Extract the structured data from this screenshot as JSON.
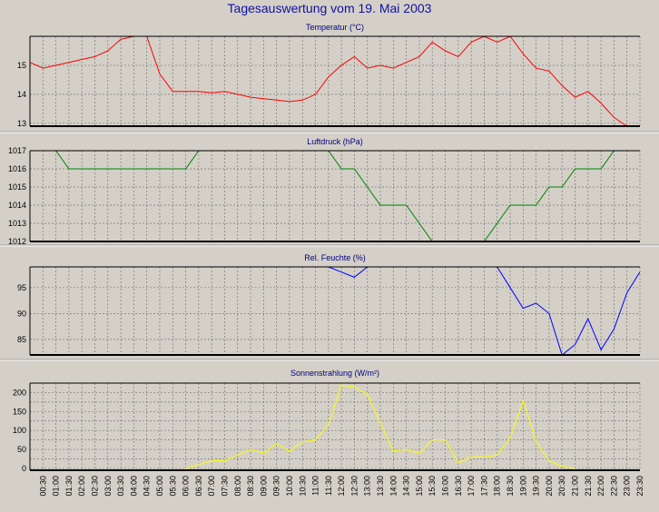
{
  "title": "Tagesauswertung vom 19. Mai 2003",
  "chart_data": [
    {
      "type": "line",
      "title": "Temperatur (°C)",
      "color": "#ff0000",
      "ylim": [
        12.9,
        16.0
      ],
      "yticks": [
        13,
        14,
        15
      ],
      "grid": true,
      "x": [
        "00:00",
        "00:30",
        "01:00",
        "01:30",
        "02:00",
        "02:30",
        "03:00",
        "03:30",
        "04:00",
        "04:30",
        "05:00",
        "05:30",
        "06:00",
        "06:30",
        "07:00",
        "07:30",
        "08:00",
        "08:30",
        "09:00",
        "09:30",
        "10:00",
        "10:30",
        "11:00",
        "11:30",
        "12:00",
        "12:30",
        "13:00",
        "13:30",
        "14:00",
        "14:30",
        "15:00",
        "15:30",
        "16:00",
        "16:30",
        "17:00",
        "17:30",
        "18:00",
        "18:30",
        "19:00",
        "19:30",
        "20:00",
        "20:30",
        "21:00",
        "21:30",
        "22:00",
        "22:30",
        "23:00",
        "23:30"
      ],
      "values": [
        15.1,
        14.9,
        15.0,
        15.1,
        15.2,
        15.3,
        15.5,
        15.9,
        16.0,
        16.0,
        14.7,
        14.1,
        14.1,
        14.1,
        14.05,
        14.1,
        14.0,
        13.9,
        13.85,
        13.8,
        13.75,
        13.8,
        14.0,
        14.6,
        15.0,
        15.3,
        14.9,
        15.0,
        14.9,
        15.1,
        15.3,
        15.8,
        15.5,
        15.3,
        15.8,
        16.0,
        15.8,
        16.0,
        15.4,
        14.9,
        14.8,
        14.3,
        13.9,
        14.1,
        13.7,
        13.2,
        12.9,
        12.9
      ]
    },
    {
      "type": "line",
      "title": "Luftdruck (hPa)",
      "color": "#008000",
      "ylim": [
        1012,
        1017
      ],
      "yticks": [
        1012,
        1013,
        1014,
        1015,
        1016,
        1017
      ],
      "grid": true,
      "x": [
        "00:00",
        "00:30",
        "01:00",
        "01:30",
        "02:00",
        "02:30",
        "03:00",
        "03:30",
        "04:00",
        "04:30",
        "05:00",
        "05:30",
        "06:00",
        "06:30",
        "07:00",
        "07:30",
        "08:00",
        "08:30",
        "09:00",
        "09:30",
        "10:00",
        "10:30",
        "11:00",
        "11:30",
        "12:00",
        "12:30",
        "13:00",
        "13:30",
        "14:00",
        "14:30",
        "15:00",
        "15:30",
        "16:00",
        "16:30",
        "17:00",
        "17:30",
        "18:00",
        "18:30",
        "19:00",
        "19:30",
        "20:00",
        "20:30",
        "21:00",
        "21:30",
        "22:00",
        "22:30",
        "23:00",
        "23:30"
      ],
      "values": [
        1017.8,
        1017.5,
        1017.0,
        1016,
        1016,
        1016,
        1016,
        1016,
        1016,
        1016,
        1016,
        1016,
        1016,
        1017,
        1017.5,
        1017.5,
        1017.5,
        1017.5,
        1017.5,
        1017.5,
        1017.5,
        1017.5,
        1017.5,
        1017,
        1016,
        1016,
        1015,
        1014,
        1014,
        1014,
        1013,
        1012,
        1011.5,
        1011.5,
        1011.5,
        1012,
        1013,
        1014,
        1014,
        1014,
        1015,
        1015,
        1016,
        1016,
        1016,
        1017,
        1017.5,
        1017.8
      ]
    },
    {
      "type": "line",
      "title": "Rel. Feuchte (%)",
      "color": "#0000ff",
      "ylim": [
        82,
        99
      ],
      "yticks": [
        85,
        90,
        95
      ],
      "grid": true,
      "x": [
        "00:00",
        "00:30",
        "01:00",
        "01:30",
        "02:00",
        "02:30",
        "03:00",
        "03:30",
        "04:00",
        "04:30",
        "05:00",
        "05:30",
        "06:00",
        "06:30",
        "07:00",
        "07:30",
        "08:00",
        "08:30",
        "09:00",
        "09:30",
        "10:00",
        "10:30",
        "11:00",
        "11:30",
        "12:00",
        "12:30",
        "13:00",
        "13:30",
        "14:00",
        "14:30",
        "15:00",
        "15:30",
        "16:00",
        "16:30",
        "17:00",
        "17:30",
        "18:00",
        "18:30",
        "19:00",
        "19:30",
        "20:00",
        "20:30",
        "21:00",
        "21:30",
        "22:00",
        "22:30",
        "23:00",
        "23:30"
      ],
      "values": [
        100,
        100,
        100,
        100,
        100,
        100,
        100,
        100,
        100,
        100,
        100,
        100,
        100,
        100,
        100,
        100,
        100,
        100,
        100,
        100,
        100,
        100,
        100,
        99,
        98,
        97,
        99,
        100,
        100,
        100,
        100,
        100,
        100,
        100,
        100,
        100,
        99,
        95,
        91,
        92,
        90,
        82,
        84,
        89,
        83,
        87,
        94,
        98
      ]
    },
    {
      "type": "line",
      "title": "Sonnenstrahlung (W/m²)",
      "color": "#ffff00",
      "ylim": [
        -5,
        225
      ],
      "yticks": [
        0,
        25,
        50,
        75,
        100,
        125,
        150,
        175,
        200
      ],
      "ytick_labels_shown": [
        0,
        50,
        100,
        150,
        200
      ],
      "grid": true,
      "x": [
        "00:00",
        "00:30",
        "01:00",
        "01:30",
        "02:00",
        "02:30",
        "03:00",
        "03:30",
        "04:00",
        "04:30",
        "05:00",
        "05:30",
        "06:00",
        "06:30",
        "07:00",
        "07:30",
        "08:00",
        "08:30",
        "09:00",
        "09:30",
        "10:00",
        "10:30",
        "11:00",
        "11:30",
        "12:00",
        "12:30",
        "13:00",
        "13:30",
        "14:00",
        "14:30",
        "15:00",
        "15:30",
        "16:00",
        "16:30",
        "17:00",
        "17:30",
        "18:00",
        "18:30",
        "19:00",
        "19:30",
        "20:00",
        "20:30",
        "21:00",
        "21:30",
        "22:00",
        "22:30",
        "23:00",
        "23:30"
      ],
      "values": [
        null,
        null,
        null,
        null,
        null,
        null,
        null,
        null,
        null,
        null,
        null,
        null,
        0,
        10,
        20,
        20,
        35,
        50,
        40,
        65,
        45,
        70,
        75,
        115,
        220,
        215,
        195,
        120,
        45,
        50,
        40,
        75,
        75,
        15,
        30,
        30,
        35,
        80,
        180,
        70,
        20,
        5,
        0,
        null,
        null,
        null,
        null,
        null
      ]
    }
  ],
  "x_axis_labels": [
    "00:30",
    "01:00",
    "01:30",
    "02:00",
    "02:30",
    "03:00",
    "03:30",
    "04:00",
    "04:30",
    "05:00",
    "05:30",
    "06:00",
    "06:30",
    "07:00",
    "07:30",
    "08:00",
    "08:30",
    "09:00",
    "09:30",
    "10:00",
    "10:30",
    "11:00",
    "11:30",
    "12:00",
    "12:30",
    "13:00",
    "13:30",
    "14:00",
    "14:30",
    "15:00",
    "15:30",
    "16:00",
    "16:30",
    "17:00",
    "17:30",
    "18:00",
    "18:30",
    "19:00",
    "19:30",
    "20:00",
    "20:30",
    "21:00",
    "21:30",
    "22:00",
    "22:30",
    "23:00",
    "23:30"
  ]
}
